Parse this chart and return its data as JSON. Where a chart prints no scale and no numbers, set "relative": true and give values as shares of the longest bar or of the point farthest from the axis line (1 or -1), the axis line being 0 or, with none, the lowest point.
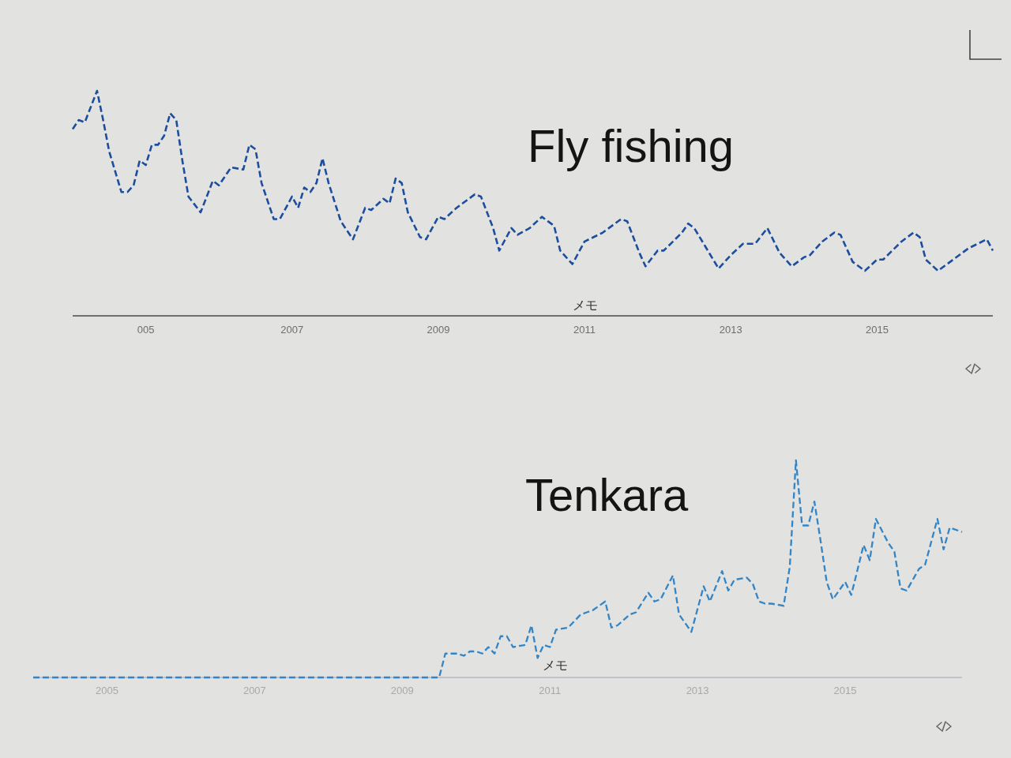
{
  "chart_data": [
    {
      "type": "line",
      "title": "Fly fishing",
      "relative": true,
      "line_style": "dashed",
      "annotations": [
        "メモ"
      ],
      "xlim": [
        "2004-01",
        "2016-08"
      ],
      "xticks": [
        {
          "value": "2005-01",
          "label": "005"
        },
        {
          "value": "2007-01",
          "label": "2007"
        },
        {
          "value": "2009-01",
          "label": "2009"
        },
        {
          "value": "2011-01",
          "label": "2011"
        },
        {
          "value": "2013-01",
          "label": "2013"
        },
        {
          "value": "2015-01",
          "label": "2015"
        }
      ],
      "x": [
        "2004-01",
        "2004-02",
        "2004-03",
        "2004-05",
        "2004-06",
        "2004-07",
        "2004-09",
        "2004-10",
        "2004-11",
        "2004-12",
        "2005-01",
        "2005-02",
        "2005-03",
        "2005-04",
        "2005-05",
        "2005-06",
        "2005-07",
        "2005-08",
        "2005-10",
        "2005-12",
        "2006-01",
        "2006-03",
        "2006-05",
        "2006-06",
        "2006-07",
        "2006-08",
        "2006-10",
        "2006-11",
        "2007-01",
        "2007-02",
        "2007-03",
        "2007-04",
        "2007-05",
        "2007-06",
        "2007-07",
        "2007-09",
        "2007-11",
        "2008-01",
        "2008-02",
        "2008-04",
        "2008-05",
        "2008-06",
        "2008-07",
        "2008-08",
        "2008-10",
        "2008-11",
        "2009-01",
        "2009-02",
        "2009-04",
        "2009-05",
        "2009-07",
        "2009-08",
        "2009-10",
        "2009-11",
        "2010-01",
        "2010-02",
        "2010-04",
        "2010-06",
        "2010-08",
        "2010-09",
        "2010-11",
        "2011-01",
        "2011-04",
        "2011-07",
        "2011-08",
        "2011-10",
        "2011-11",
        "2012-01",
        "2012-02",
        "2012-05",
        "2012-06",
        "2012-07",
        "2012-09",
        "2012-11",
        "2013-01",
        "2013-03",
        "2013-05",
        "2013-07",
        "2013-09",
        "2013-11",
        "2014-01",
        "2014-02",
        "2014-04",
        "2014-06",
        "2014-07",
        "2014-09",
        "2014-11",
        "2015-01",
        "2015-02",
        "2015-05",
        "2015-07",
        "2015-08",
        "2015-09",
        "2015-11",
        "2016-01",
        "2016-04",
        "2016-07",
        "2016-08"
      ],
      "series": [
        {
          "color": "#1d4e9e",
          "values": [
            0.83,
            0.87,
            0.86,
            1,
            0.87,
            0.73,
            0.55,
            0.55,
            0.58,
            0.69,
            0.67,
            0.76,
            0.76,
            0.8,
            0.9,
            0.87,
            0.69,
            0.53,
            0.46,
            0.6,
            0.58,
            0.66,
            0.65,
            0.76,
            0.74,
            0.59,
            0.43,
            0.43,
            0.53,
            0.48,
            0.57,
            0.55,
            0.59,
            0.7,
            0.59,
            0.42,
            0.34,
            0.48,
            0.47,
            0.52,
            0.5,
            0.61,
            0.59,
            0.46,
            0.35,
            0.34,
            0.44,
            0.43,
            0.48,
            0.5,
            0.54,
            0.53,
            0.39,
            0.29,
            0.39,
            0.36,
            0.39,
            0.44,
            0.4,
            0.29,
            0.23,
            0.33,
            0.37,
            0.43,
            0.42,
            0.28,
            0.22,
            0.29,
            0.29,
            0.37,
            0.41,
            0.39,
            0.3,
            0.21,
            0.27,
            0.32,
            0.32,
            0.39,
            0.28,
            0.22,
            0.26,
            0.27,
            0.33,
            0.37,
            0.36,
            0.24,
            0.2,
            0.25,
            0.25,
            0.33,
            0.37,
            0.35,
            0.25,
            0.2,
            0.24,
            0.3,
            0.34,
            0.29
          ]
        }
      ]
    },
    {
      "type": "line",
      "title": "Tenkara",
      "relative": true,
      "line_style": "dashed",
      "annotations": [
        "メモ"
      ],
      "xlim": [
        "2004-01",
        "2016-08"
      ],
      "xticks": [
        {
          "value": "2005-01",
          "label": "2005"
        },
        {
          "value": "2007-01",
          "label": "2007"
        },
        {
          "value": "2009-01",
          "label": "2009"
        },
        {
          "value": "2011-01",
          "label": "2011"
        },
        {
          "value": "2013-01",
          "label": "2013"
        },
        {
          "value": "2015-01",
          "label": "2015"
        }
      ],
      "x": [
        "2004-01",
        "2009-07",
        "2009-08",
        "2009-09",
        "2009-10",
        "2009-11",
        "2009-12",
        "2010-01",
        "2010-02",
        "2010-03",
        "2010-04",
        "2010-05",
        "2010-06",
        "2010-07",
        "2010-09",
        "2010-10",
        "2010-11",
        "2010-12",
        "2011-01",
        "2011-02",
        "2011-04",
        "2011-06",
        "2011-07",
        "2011-08",
        "2011-10",
        "2011-11",
        "2011-12",
        "2012-02",
        "2012-03",
        "2012-05",
        "2012-06",
        "2012-07",
        "2012-09",
        "2012-10",
        "2012-12",
        "2013-02",
        "2013-03",
        "2013-05",
        "2013-06",
        "2013-07",
        "2013-09",
        "2013-10",
        "2013-11",
        "2013-12",
        "2014-01",
        "2014-03",
        "2014-04",
        "2014-05",
        "2014-06",
        "2014-07",
        "2014-08",
        "2014-09",
        "2014-10",
        "2014-11",
        "2015-01",
        "2015-02",
        "2015-04",
        "2015-05",
        "2015-06",
        "2015-08",
        "2015-09",
        "2015-10",
        "2015-11",
        "2016-01",
        "2016-02",
        "2016-04",
        "2016-05",
        "2016-06",
        "2016-08"
      ],
      "series": [
        {
          "color": "#3385c6",
          "values": [
            0,
            0,
            0.11,
            0.11,
            0.11,
            0.1,
            0.12,
            0.12,
            0.11,
            0.14,
            0.11,
            0.19,
            0.19,
            0.14,
            0.15,
            0.24,
            0.09,
            0.15,
            0.14,
            0.22,
            0.23,
            0.29,
            0.3,
            0.31,
            0.35,
            0.23,
            0.24,
            0.29,
            0.3,
            0.39,
            0.35,
            0.36,
            0.47,
            0.29,
            0.21,
            0.42,
            0.35,
            0.49,
            0.4,
            0.45,
            0.46,
            0.43,
            0.35,
            0.34,
            0.34,
            0.33,
            0.51,
            1,
            0.7,
            0.7,
            0.81,
            0.63,
            0.44,
            0.36,
            0.44,
            0.38,
            0.61,
            0.54,
            0.73,
            0.62,
            0.58,
            0.41,
            0.4,
            0.5,
            0.52,
            0.73,
            0.59,
            0.69,
            0.67
          ]
        }
      ]
    }
  ]
}
